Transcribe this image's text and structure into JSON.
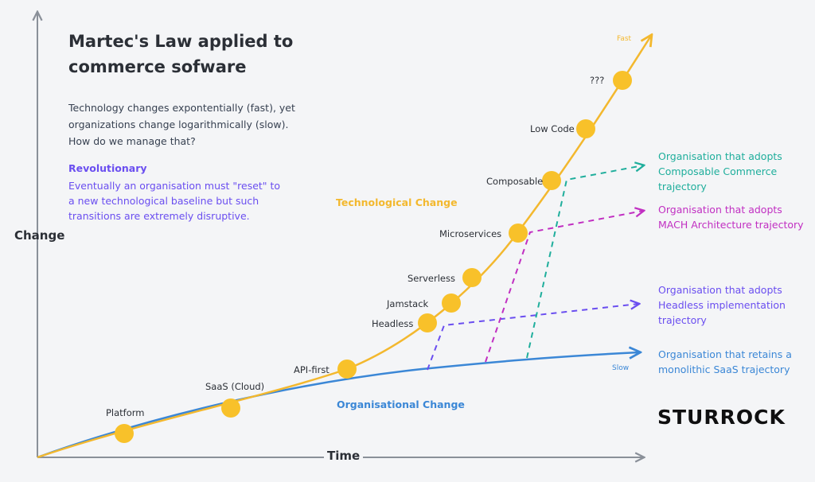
{
  "title": "Martec's Law applied to commerce sofware",
  "intro": "Technology changes expontentially (fast), yet organizations change logarithmically (slow). How do we manage that?",
  "revolutionary": {
    "title": "Revolutionary",
    "body": "Eventually an organisation must \"reset\" to a new technological baseline but such transitions are extremely disruptive."
  },
  "axes": {
    "y_label": "Change",
    "x_label": "Time"
  },
  "series": {
    "tech_label": "Technological Change",
    "org_label": "Organisational Change",
    "fast_tag": "Fast",
    "slow_tag": "Slow"
  },
  "milestones": [
    "Platform",
    "SaaS (Cloud)",
    "API-first",
    "Headless",
    "Jamstack",
    "Serverless",
    "Microservices",
    "Composable",
    "Low Code",
    "???"
  ],
  "trajectories": [
    {
      "key": "composable",
      "text": "Organisation that adopts Composable Commerce trajectory"
    },
    {
      "key": "mach",
      "text": "Organisation that adopts MACH Architecture trajectory"
    },
    {
      "key": "headless",
      "text": "Organisation that adopts Headless implementation trajectory"
    },
    {
      "key": "saas",
      "text": "Organisation that retains a monolithic SaaS trajectory"
    }
  ],
  "brand": "STURROCK",
  "colors": {
    "tech": "#f3b82e",
    "org": "#3b87d6",
    "composable": "#1fae9c",
    "mach": "#c12fc2",
    "headless": "#6a4ef0",
    "axis": "#8a9099"
  }
}
